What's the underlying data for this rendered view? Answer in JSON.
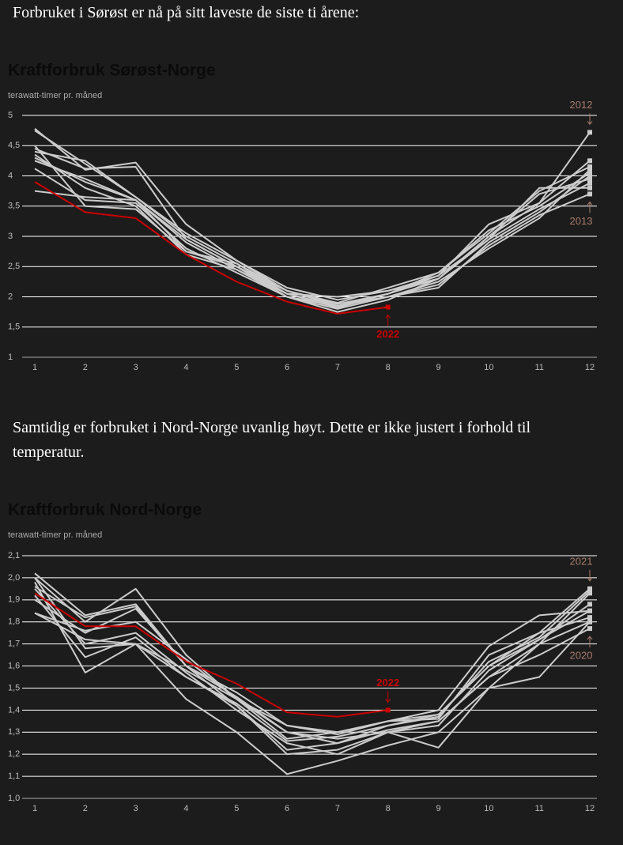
{
  "intro": "Forbruket i Sørøst er nå på sitt laveste de siste ti årene:",
  "between": "Samtidig er forbruket i Nord-Norge uvanlig høyt. Dette er ikke justert i forhold til temperatur.",
  "chart_data": [
    {
      "type": "line",
      "title": "Kraftforbruk Sørøst-Norge",
      "subtitle": "terawatt-timer pr. måned",
      "x": [
        1,
        2,
        3,
        4,
        5,
        6,
        7,
        8,
        9,
        10,
        11,
        12
      ],
      "xlim": [
        1,
        12
      ],
      "xticks": [
        1,
        2,
        3,
        4,
        5,
        6,
        7,
        8,
        9,
        10,
        11,
        12
      ],
      "ylim": [
        1,
        5
      ],
      "yticks": [
        1,
        {
          "value": 1.5,
          "label": "1,5"
        },
        2,
        {
          "value": 2.5,
          "label": "2,5"
        },
        3,
        {
          "value": 3.5,
          "label": "3,5"
        },
        4,
        {
          "value": 4.5,
          "label": "4,5"
        },
        5
      ],
      "grid": true,
      "annotation_color": "#a87c6c",
      "series": [
        {
          "name": "2012",
          "color": "#cccccc",
          "values": [
            4.75,
            4.2,
            3.65,
            3.0,
            2.55,
            2.1,
            1.88,
            2.05,
            2.3,
            3.0,
            3.55,
            4.72
          ]
        },
        {
          "name": "2013",
          "color": "#cccccc",
          "values": [
            3.75,
            3.65,
            3.6,
            2.9,
            2.45,
            2.05,
            1.85,
            2.0,
            2.2,
            2.85,
            3.35,
            3.7
          ]
        },
        {
          "color": "#cccccc",
          "values": [
            4.78,
            4.1,
            4.22,
            3.2,
            2.6,
            2.15,
            1.95,
            2.1,
            2.35,
            3.2,
            3.55,
            4.25
          ]
        },
        {
          "color": "#cccccc",
          "values": [
            4.45,
            4.12,
            4.15,
            2.95,
            2.5,
            2.05,
            1.82,
            2.05,
            2.4,
            3.05,
            3.75,
            4.15
          ]
        },
        {
          "color": "#cccccc",
          "values": [
            4.35,
            3.8,
            3.5,
            2.7,
            2.45,
            2.0,
            1.8,
            2.0,
            2.25,
            2.8,
            3.3,
            4.1
          ]
        },
        {
          "color": "#cccccc",
          "values": [
            4.3,
            3.9,
            3.6,
            2.75,
            2.5,
            2.1,
            1.9,
            2.15,
            2.4,
            3.1,
            3.5,
            4.05
          ]
        },
        {
          "color": "#cccccc",
          "values": [
            4.12,
            3.6,
            3.55,
            2.8,
            2.4,
            2.0,
            1.85,
            2.0,
            2.15,
            2.9,
            3.4,
            4.0
          ]
        },
        {
          "color": "#cccccc",
          "values": [
            4.5,
            3.5,
            3.45,
            2.75,
            2.55,
            2.05,
            2.0,
            2.1,
            2.3,
            3.0,
            3.7,
            3.95
          ]
        },
        {
          "color": "#cccccc",
          "values": [
            4.25,
            3.95,
            3.6,
            2.95,
            2.5,
            2.0,
            1.75,
            1.95,
            2.3,
            2.95,
            3.45,
            3.88
          ]
        },
        {
          "color": "#cccccc",
          "values": [
            4.4,
            4.25,
            3.65,
            3.05,
            2.6,
            2.1,
            1.85,
            2.05,
            2.35,
            2.95,
            3.8,
            3.8
          ]
        },
        {
          "name": "2022",
          "color": "#cc0000",
          "values": [
            3.9,
            3.4,
            3.3,
            2.7,
            2.25,
            1.92,
            1.72,
            1.83,
            null,
            null,
            null,
            null
          ]
        }
      ]
    },
    {
      "type": "line",
      "title": "Kraftforbruk Nord-Norge",
      "subtitle": "terawatt-timer pr. måned",
      "x": [
        1,
        2,
        3,
        4,
        5,
        6,
        7,
        8,
        9,
        10,
        11,
        12
      ],
      "xlim": [
        1,
        12
      ],
      "xticks": [
        1,
        2,
        3,
        4,
        5,
        6,
        7,
        8,
        9,
        10,
        11,
        12
      ],
      "ylim": [
        1.0,
        2.1
      ],
      "yticks": [
        {
          "value": 1.0,
          "label": "1,0"
        },
        {
          "value": 1.1,
          "label": "1,1"
        },
        {
          "value": 1.2,
          "label": "1,2"
        },
        {
          "value": 1.3,
          "label": "1,3"
        },
        {
          "value": 1.4,
          "label": "1,4"
        },
        {
          "value": 1.5,
          "label": "1,5"
        },
        {
          "value": 1.6,
          "label": "1,6"
        },
        {
          "value": 1.7,
          "label": "1,7"
        },
        {
          "value": 1.8,
          "label": "1,8"
        },
        {
          "value": 1.9,
          "label": "1,9"
        },
        {
          "value": 2.0,
          "label": "2,0"
        },
        {
          "value": 2.1,
          "label": "2,1"
        }
      ],
      "grid": true,
      "annotation_color": "#a87c6c",
      "series": [
        {
          "name": "2021",
          "color": "#cccccc",
          "values": [
            2.0,
            1.8,
            1.95,
            1.65,
            1.45,
            1.27,
            1.3,
            1.35,
            1.38,
            1.6,
            1.75,
            1.95
          ]
        },
        {
          "name": "2020",
          "color": "#cccccc",
          "values": [
            1.84,
            1.72,
            1.7,
            1.58,
            1.45,
            1.3,
            1.27,
            1.3,
            1.35,
            1.55,
            1.65,
            1.77
          ]
        },
        {
          "color": "#cccccc",
          "values": [
            2.02,
            1.83,
            1.88,
            1.6,
            1.48,
            1.33,
            1.3,
            1.35,
            1.4,
            1.69,
            1.83,
            1.85
          ]
        },
        {
          "color": "#cccccc",
          "values": [
            1.98,
            1.57,
            1.7,
            1.45,
            1.3,
            1.11,
            1.17,
            1.24,
            1.3,
            1.5,
            1.55,
            1.8
          ]
        },
        {
          "color": "#cccccc",
          "values": [
            1.92,
            1.64,
            1.73,
            1.55,
            1.42,
            1.2,
            1.22,
            1.3,
            1.23,
            1.5,
            1.7,
            1.93
          ]
        },
        {
          "color": "#cccccc",
          "values": [
            1.95,
            1.7,
            1.75,
            1.57,
            1.4,
            1.25,
            1.2,
            1.3,
            1.33,
            1.58,
            1.72,
            1.88
          ]
        },
        {
          "color": "#cccccc",
          "values": [
            1.9,
            1.75,
            1.86,
            1.6,
            1.42,
            1.22,
            1.25,
            1.33,
            1.37,
            1.62,
            1.73,
            1.94
          ]
        },
        {
          "color": "#cccccc",
          "values": [
            1.84,
            1.76,
            1.8,
            1.63,
            1.45,
            1.33,
            1.29,
            1.35,
            1.36,
            1.65,
            1.75,
            1.82
          ]
        },
        {
          "color": "#cccccc",
          "values": [
            1.96,
            1.82,
            1.87,
            1.6,
            1.46,
            1.3,
            1.25,
            1.31,
            1.35,
            1.55,
            1.7,
            1.8
          ]
        },
        {
          "color": "#cccccc",
          "values": [
            2.0,
            1.68,
            1.7,
            1.55,
            1.43,
            1.26,
            1.28,
            1.33,
            1.38,
            1.6,
            1.72,
            1.85
          ]
        },
        {
          "name": "2022",
          "color": "#cc0000",
          "values": [
            1.93,
            1.78,
            1.78,
            1.62,
            1.52,
            1.39,
            1.37,
            1.4,
            null,
            null,
            null,
            null
          ]
        }
      ]
    }
  ]
}
